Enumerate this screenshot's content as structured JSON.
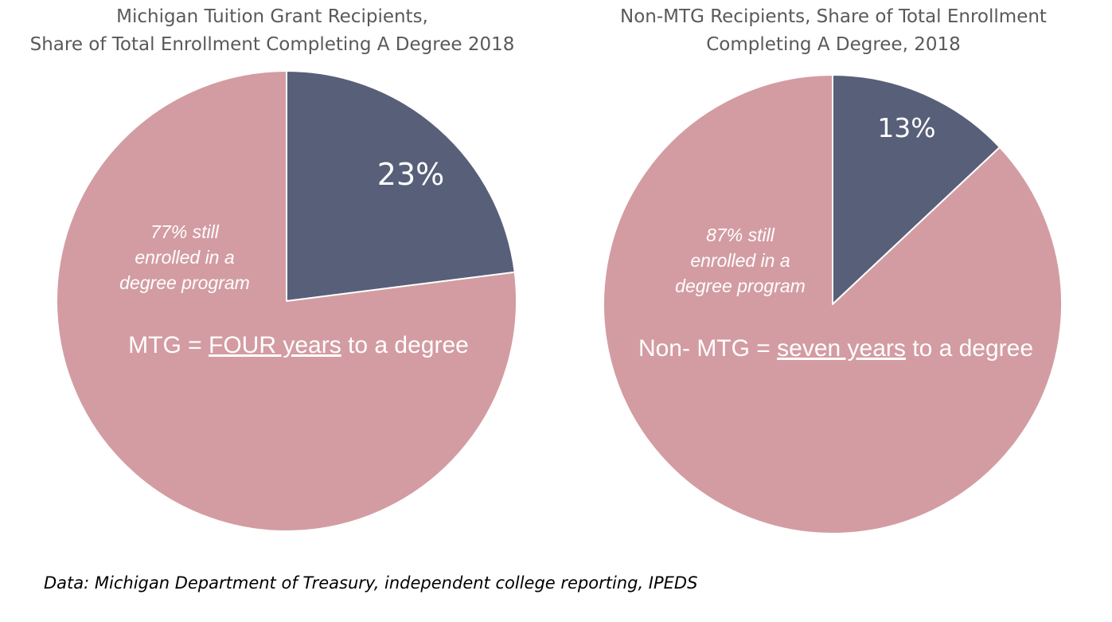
{
  "colors": {
    "completed": "#585f78",
    "enrolled": "#d39ca2",
    "title_text": "#595959",
    "label_text": "#ffffff"
  },
  "chart_data": [
    {
      "type": "pie",
      "title_lines": [
        "Michigan Tuition Grant Recipients,",
        "Share of Total Enrollment Completing A Degree 2018"
      ],
      "slices": [
        {
          "label": "Completed a degree",
          "value": 23,
          "data_label": "23%"
        },
        {
          "label": "Still enrolled in a degree program",
          "value": 77,
          "data_label": ""
        }
      ],
      "annotation_lines": [
        "77% still",
        "enrolled in a",
        "degree program"
      ],
      "summary": {
        "prefix": "MTG = ",
        "underlined": "FOUR years",
        "suffix": " to a degree"
      }
    },
    {
      "type": "pie",
      "title_lines": [
        "Non-MTG Recipients, Share of Total Enrollment",
        "Completing A Degree, 2018"
      ],
      "slices": [
        {
          "label": "Completed a degree",
          "value": 13,
          "data_label": "13%"
        },
        {
          "label": "Still enrolled in a degree program",
          "value": 87,
          "data_label": ""
        }
      ],
      "annotation_lines": [
        "87% still",
        "enrolled in a",
        "degree program"
      ],
      "summary": {
        "prefix": "Non- MTG = ",
        "underlined": "seven years",
        "suffix": " to a degree"
      }
    }
  ],
  "source": "Data: Michigan Department of Treasury, independent college reporting, IPEDS"
}
